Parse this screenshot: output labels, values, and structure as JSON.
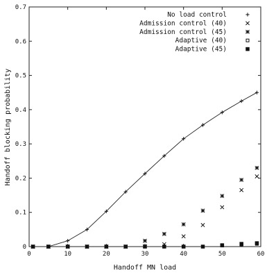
{
  "chart_data": {
    "type": "line",
    "xlabel": "Handoff MN load",
    "ylabel": "Handoff blocking probability",
    "xlim": [
      0,
      60
    ],
    "ylim": [
      0,
      0.7
    ],
    "xticks": [
      0,
      10,
      20,
      30,
      40,
      50,
      60
    ],
    "yticks": [
      0,
      0.1,
      0.2,
      0.3,
      0.4,
      0.5,
      0.6,
      0.7
    ],
    "legend_position": "top-right",
    "series": [
      {
        "name": "No load control",
        "marker": "plus",
        "line": true,
        "x": [
          1,
          5,
          10,
          15,
          20,
          25,
          30,
          35,
          40,
          45,
          50,
          55,
          59
        ],
        "y": [
          0,
          0,
          0.017,
          0.05,
          0.103,
          0.16,
          0.213,
          0.265,
          0.315,
          0.355,
          0.392,
          0.425,
          0.45
        ]
      },
      {
        "name": "Admission control (40)",
        "marker": "cross",
        "line": false,
        "x": [
          1,
          5,
          10,
          15,
          20,
          25,
          30,
          35,
          40,
          45,
          50,
          55,
          59
        ],
        "y": [
          0,
          0,
          0,
          0,
          0,
          0,
          0.001,
          0.007,
          0.03,
          0.063,
          0.115,
          0.165,
          0.205
        ]
      },
      {
        "name": "Admission control (45)",
        "marker": "star",
        "line": false,
        "x": [
          1,
          5,
          10,
          15,
          20,
          25,
          30,
          35,
          40,
          45,
          50,
          55,
          59
        ],
        "y": [
          0,
          0,
          0,
          0,
          0,
          0,
          0.017,
          0.037,
          0.065,
          0.105,
          0.148,
          0.195,
          0.23
        ]
      },
      {
        "name": "Adaptive (40)",
        "marker": "open-square",
        "line": false,
        "x": [
          1,
          5,
          10,
          15,
          20,
          25,
          30,
          35,
          40,
          45,
          50,
          55,
          59
        ],
        "y": [
          0,
          0,
          0,
          0,
          0,
          0,
          0,
          0,
          0,
          0,
          0.003,
          0.006,
          0.008
        ]
      },
      {
        "name": "Adaptive (45)",
        "marker": "filled-square",
        "line": false,
        "x": [
          1,
          5,
          10,
          15,
          20,
          25,
          30,
          35,
          40,
          45,
          50,
          55,
          59
        ],
        "y": [
          0,
          0,
          0,
          0,
          0,
          0,
          0,
          0,
          0,
          0,
          0.004,
          0.008,
          0.01
        ]
      }
    ]
  }
}
